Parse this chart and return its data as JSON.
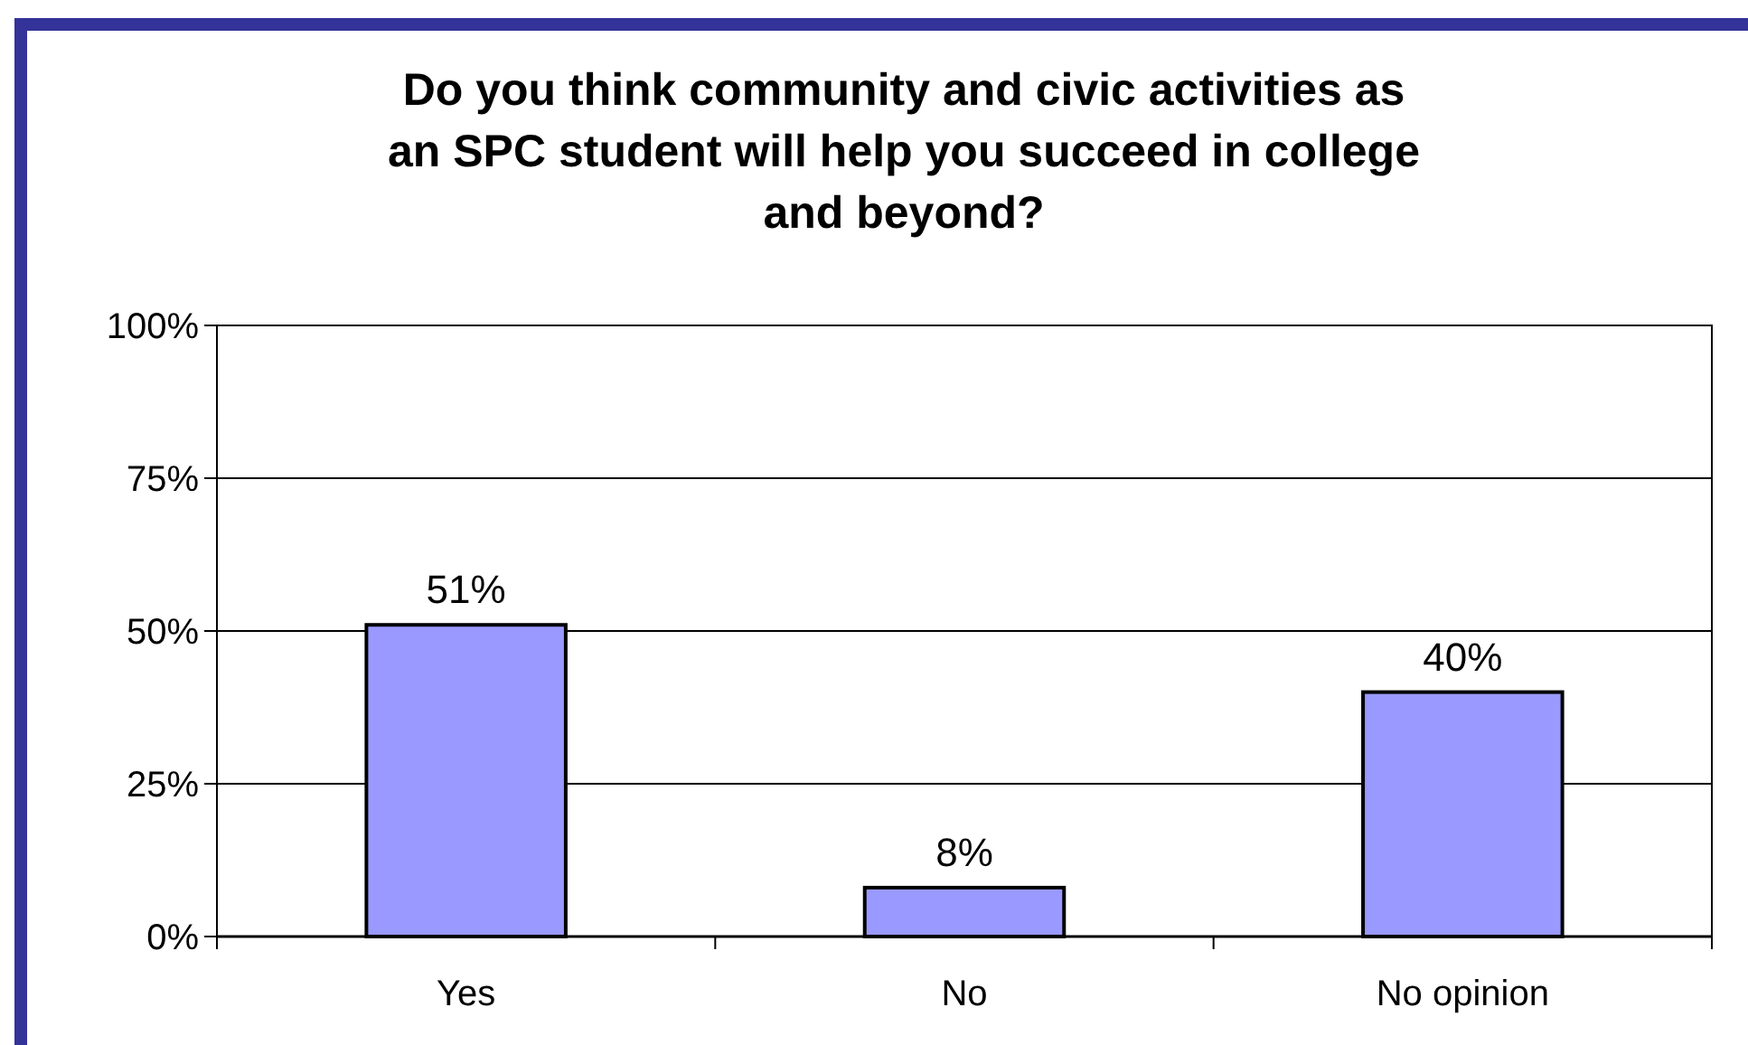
{
  "chart_data": {
    "type": "bar",
    "title": "Do you think community  and civic activities as\nan SPC student will help you succeed in college\nand beyond?",
    "categories": [
      "Yes",
      "No",
      "No opinion"
    ],
    "values": [
      51,
      8,
      40
    ],
    "value_labels": [
      "51%",
      "8%",
      "40%"
    ],
    "color": "#9999ff",
    "ylim": [
      0,
      100
    ],
    "yticks": [
      {
        "value": 0,
        "label": "0%"
      },
      {
        "value": 25,
        "label": "25%"
      },
      {
        "value": 50,
        "label": "50%"
      },
      {
        "value": 75,
        "label": "75%"
      },
      {
        "value": 100,
        "label": "100%"
      }
    ],
    "grid": "y"
  }
}
